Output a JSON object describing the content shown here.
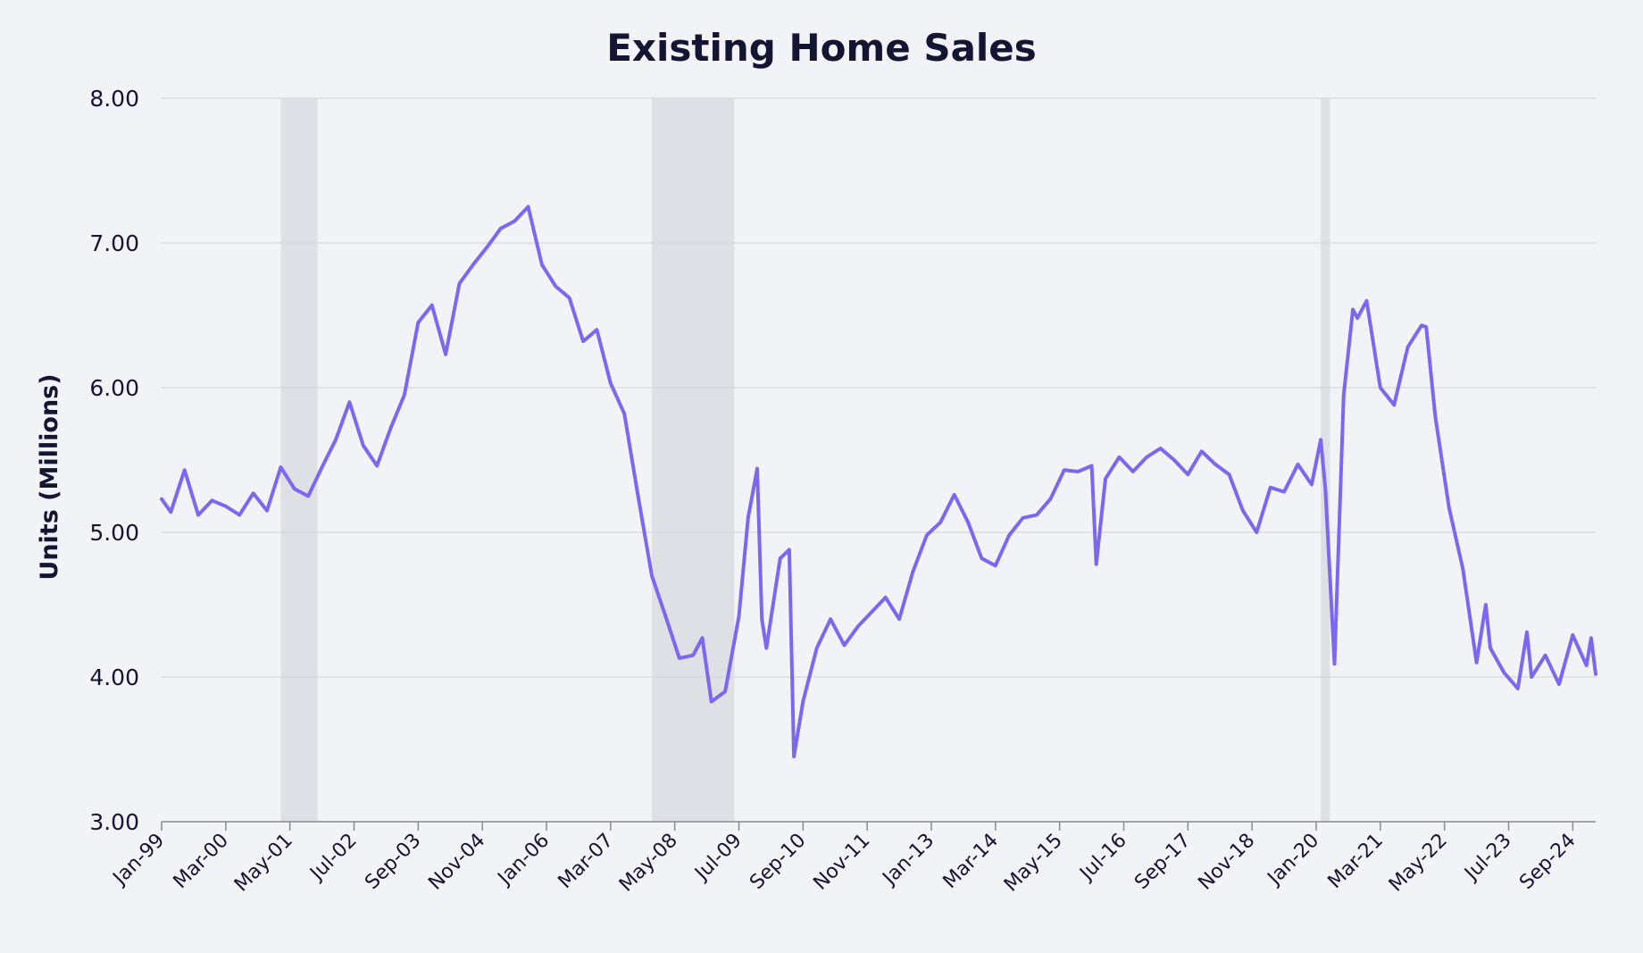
{
  "chart_data": {
    "type": "line",
    "title": "Existing Home Sales",
    "xlabel": "",
    "ylabel": "Units (Millions)",
    "ylim": [
      3.0,
      8.0
    ],
    "y_ticks": [
      "3.00",
      "4.00",
      "5.00",
      "6.00",
      "7.00",
      "8.00"
    ],
    "x_range": [
      "1999-01",
      "2025-02"
    ],
    "x_tick_labels": [
      "Jan-99",
      "Mar-00",
      "May-01",
      "Jul-02",
      "Sep-03",
      "Nov-04",
      "Jan-06",
      "Mar-07",
      "May-08",
      "Jul-09",
      "Sep-10",
      "Nov-11",
      "Jan-13",
      "Mar-14",
      "May-15",
      "Jul-16",
      "Sep-17",
      "Nov-18",
      "Jan-20",
      "Mar-21",
      "May-22",
      "Jul-23",
      "Sep-24"
    ],
    "x_tick_dates": [
      "1999-01",
      "2000-03",
      "2001-05",
      "2002-07",
      "2003-09",
      "2004-11",
      "2006-01",
      "2007-03",
      "2008-05",
      "2009-07",
      "2010-09",
      "2011-11",
      "2013-01",
      "2014-03",
      "2015-05",
      "2016-07",
      "2017-09",
      "2018-11",
      "2020-01",
      "2021-03",
      "2022-05",
      "2023-07",
      "2024-09"
    ],
    "grid": true,
    "recession_shading": [
      {
        "start": "2001-03",
        "end": "2001-11"
      },
      {
        "start": "2007-12",
        "end": "2009-06"
      },
      {
        "start": "2020-02",
        "end": "2020-04"
      }
    ],
    "series": [
      {
        "color": "#7b68f2",
        "x": [
          "1999-01",
          "1999-03",
          "1999-06",
          "1999-09",
          "1999-12",
          "2000-03",
          "2000-06",
          "2000-09",
          "2000-12",
          "2001-03",
          "2001-06",
          "2001-09",
          "2001-12",
          "2002-03",
          "2002-06",
          "2002-09",
          "2002-12",
          "2003-03",
          "2003-06",
          "2003-09",
          "2003-12",
          "2004-03",
          "2004-06",
          "2004-09",
          "2004-12",
          "2005-03",
          "2005-06",
          "2005-09",
          "2005-12",
          "2006-03",
          "2006-06",
          "2006-09",
          "2006-12",
          "2007-03",
          "2007-06",
          "2007-09",
          "2007-12",
          "2008-03",
          "2008-06",
          "2008-09",
          "2008-11",
          "2009-01",
          "2009-04",
          "2009-07",
          "2009-09",
          "2009-11",
          "2009-12",
          "2010-01",
          "2010-04",
          "2010-06",
          "2010-07",
          "2010-09",
          "2010-12",
          "2011-03",
          "2011-06",
          "2011-09",
          "2011-12",
          "2012-03",
          "2012-06",
          "2012-09",
          "2012-12",
          "2013-03",
          "2013-06",
          "2013-09",
          "2013-12",
          "2014-03",
          "2014-06",
          "2014-09",
          "2014-12",
          "2015-03",
          "2015-06",
          "2015-09",
          "2015-12",
          "2016-01",
          "2016-03",
          "2016-06",
          "2016-09",
          "2016-12",
          "2017-03",
          "2017-06",
          "2017-09",
          "2017-12",
          "2018-03",
          "2018-06",
          "2018-09",
          "2018-12",
          "2019-03",
          "2019-06",
          "2019-09",
          "2019-12",
          "2020-02",
          "2020-03",
          "2020-05",
          "2020-07",
          "2020-09",
          "2020-10",
          "2020-12",
          "2021-03",
          "2021-06",
          "2021-09",
          "2021-12",
          "2022-01",
          "2022-03",
          "2022-06",
          "2022-09",
          "2022-12",
          "2023-02",
          "2023-03",
          "2023-06",
          "2023-09",
          "2023-11",
          "2023-12",
          "2024-03",
          "2024-06",
          "2024-09",
          "2024-12",
          "2025-01",
          "2025-02"
        ],
        "y": [
          5.23,
          5.14,
          5.43,
          5.12,
          5.22,
          5.18,
          5.12,
          5.27,
          5.15,
          5.45,
          5.3,
          5.25,
          5.45,
          5.64,
          5.9,
          5.6,
          5.46,
          5.72,
          5.95,
          6.45,
          6.57,
          6.23,
          6.72,
          6.85,
          6.97,
          7.1,
          7.15,
          7.25,
          6.85,
          6.7,
          6.62,
          6.32,
          6.4,
          6.03,
          5.82,
          5.25,
          4.7,
          4.42,
          4.13,
          4.15,
          4.27,
          3.83,
          3.9,
          4.42,
          5.1,
          5.44,
          4.4,
          4.2,
          4.82,
          4.88,
          3.45,
          3.83,
          4.2,
          4.4,
          4.22,
          4.35,
          4.45,
          4.55,
          4.4,
          4.73,
          4.98,
          5.07,
          5.26,
          5.07,
          4.82,
          4.77,
          4.98,
          5.1,
          5.12,
          5.23,
          5.43,
          5.42,
          5.46,
          4.78,
          5.37,
          5.52,
          5.42,
          5.52,
          5.58,
          5.5,
          5.4,
          5.56,
          5.47,
          5.4,
          5.15,
          5.0,
          5.31,
          5.28,
          5.47,
          5.33,
          5.64,
          5.3,
          4.09,
          5.95,
          6.54,
          6.48,
          6.6,
          6.0,
          5.88,
          6.28,
          6.43,
          6.42,
          5.8,
          5.17,
          4.75,
          4.1,
          4.5,
          4.2,
          4.03,
          3.92,
          4.31,
          4.0,
          4.15,
          3.95,
          4.29,
          4.08,
          4.27,
          4.02
        ]
      }
    ]
  }
}
